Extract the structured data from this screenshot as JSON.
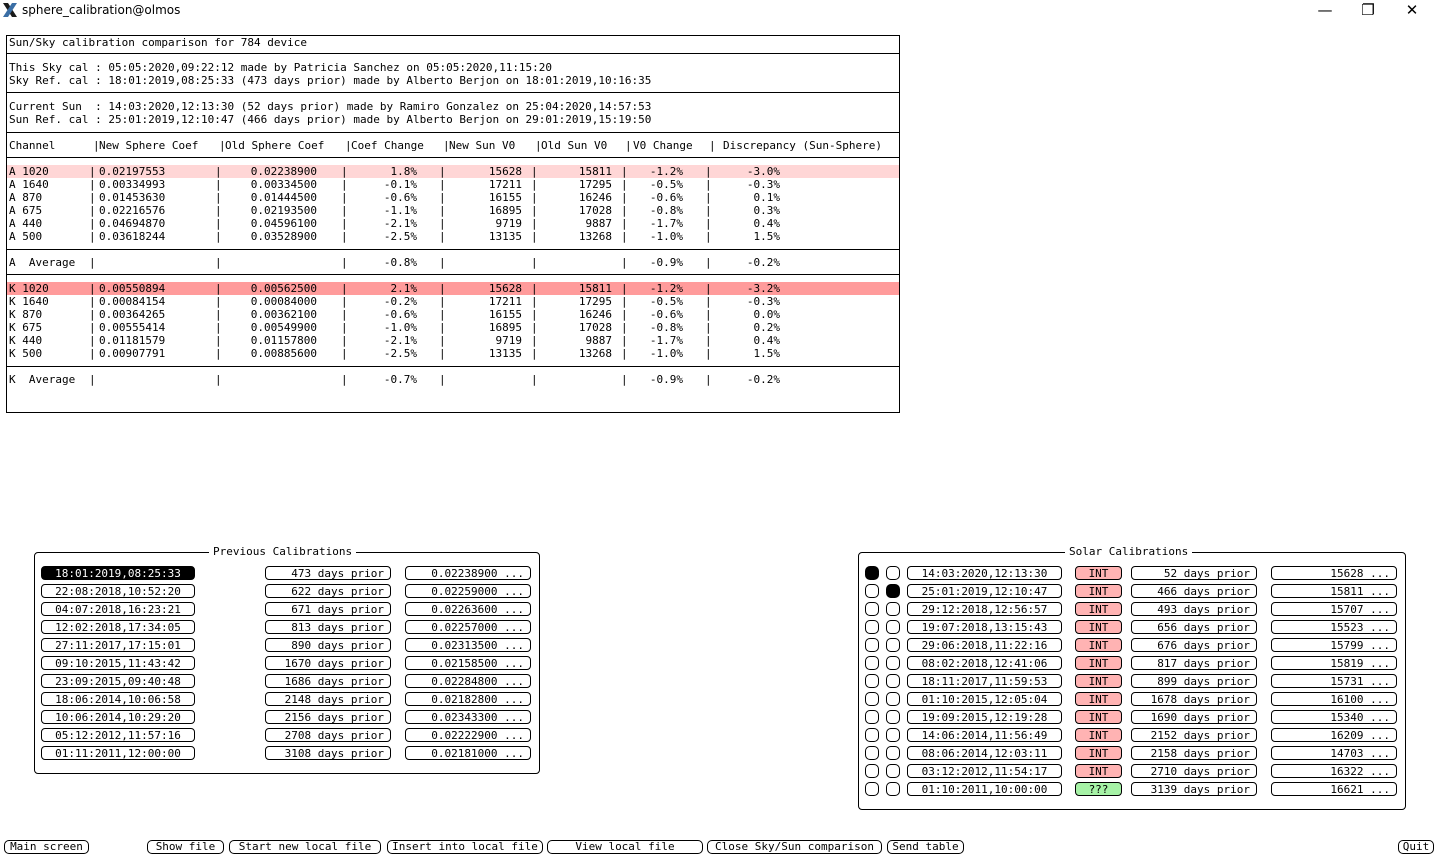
{
  "window": {
    "title": "sphere_calibration@olmos",
    "minimize": "—",
    "restore": "❐",
    "close": "✕"
  },
  "header": {
    "title": "Sun/Sky calibration comparison for 784 device",
    "sky_cal": "This Sky cal : 05:05:2020,09:22:12 made by Patricia Sanchez on 05:05:2020,11:15:20",
    "sky_ref": "Sky Ref. cal : 18:01:2019,08:25:33 (473 days prior) made by Alberto Berjon on 18:01:2019,10:16:35",
    "sun_cur": "Current Sun  : 14:03:2020,12:13:30 (52 days prior) made by Ramiro Gonzalez on 25:04:2020,14:57:53",
    "sun_ref": "Sun Ref. cal : 25:01:2019,12:10:47 (466 days prior) made by Alberto Berjon on 29:01:2019,15:19:50"
  },
  "columns": [
    "Channel",
    "New Sphere Coef",
    "Old Sphere Coef",
    "Coef Change",
    "New Sun V0",
    "Old Sun V0",
    "V0 Change",
    "Discrepancy (Sun-Sphere)"
  ],
  "groups": [
    {
      "rows": [
        {
          "ch": "A 1020",
          "nsc": "0.02197553",
          "osc": "0.02238900",
          "cc": "1.8%",
          "nsv": "15628",
          "osv": "15811",
          "vc": "-1.2%",
          "disc": "-3.0%",
          "hl": "a"
        },
        {
          "ch": "A 1640",
          "nsc": "0.00334993",
          "osc": "0.00334500",
          "cc": "-0.1%",
          "nsv": "17211",
          "osv": "17295",
          "vc": "-0.5%",
          "disc": "-0.3%",
          "hl": ""
        },
        {
          "ch": "A 870",
          "nsc": "0.01453630",
          "osc": "0.01444500",
          "cc": "-0.6%",
          "nsv": "16155",
          "osv": "16246",
          "vc": "-0.6%",
          "disc": "0.1%",
          "hl": ""
        },
        {
          "ch": "A 675",
          "nsc": "0.02216576",
          "osc": "0.02193500",
          "cc": "-1.1%",
          "nsv": "16895",
          "osv": "17028",
          "vc": "-0.8%",
          "disc": "0.3%",
          "hl": ""
        },
        {
          "ch": "A 440",
          "nsc": "0.04694870",
          "osc": "0.04596100",
          "cc": "-2.1%",
          "nsv": "9719",
          "osv": "9887",
          "vc": "-1.7%",
          "disc": "0.4%",
          "hl": ""
        },
        {
          "ch": "A 500",
          "nsc": "0.03618244",
          "osc": "0.03528900",
          "cc": "-2.5%",
          "nsv": "13135",
          "osv": "13268",
          "vc": "-1.0%",
          "disc": "1.5%",
          "hl": ""
        }
      ],
      "avg": {
        "label": "A  Average",
        "cc": "-0.8%",
        "vc": "-0.9%",
        "disc": "-0.2%"
      }
    },
    {
      "rows": [
        {
          "ch": "K 1020",
          "nsc": "0.00550894",
          "osc": "0.00562500",
          "cc": "2.1%",
          "nsv": "15628",
          "osv": "15811",
          "vc": "-1.2%",
          "disc": "-3.2%",
          "hl": "k"
        },
        {
          "ch": "K 1640",
          "nsc": "0.00084154",
          "osc": "0.00084000",
          "cc": "-0.2%",
          "nsv": "17211",
          "osv": "17295",
          "vc": "-0.5%",
          "disc": "-0.3%",
          "hl": ""
        },
        {
          "ch": "K 870",
          "nsc": "0.00364265",
          "osc": "0.00362100",
          "cc": "-0.6%",
          "nsv": "16155",
          "osv": "16246",
          "vc": "-0.6%",
          "disc": "0.0%",
          "hl": ""
        },
        {
          "ch": "K 675",
          "nsc": "0.00555414",
          "osc": "0.00549900",
          "cc": "-1.0%",
          "nsv": "16895",
          "osv": "17028",
          "vc": "-0.8%",
          "disc": "0.2%",
          "hl": ""
        },
        {
          "ch": "K 440",
          "nsc": "0.01181579",
          "osc": "0.01157800",
          "cc": "-2.1%",
          "nsv": "9719",
          "osv": "9887",
          "vc": "-1.7%",
          "disc": "0.4%",
          "hl": ""
        },
        {
          "ch": "K 500",
          "nsc": "0.00907791",
          "osc": "0.00885600",
          "cc": "-2.5%",
          "nsv": "13135",
          "osv": "13268",
          "vc": "-1.0%",
          "disc": "1.5%",
          "hl": ""
        }
      ],
      "avg": {
        "label": "K  Average",
        "cc": "-0.7%",
        "vc": "-0.9%",
        "disc": "-0.2%"
      }
    }
  ],
  "previous": {
    "title": "Previous Calibrations",
    "items": [
      {
        "date": "18:01:2019,08:25:33",
        "prior": "473 days prior",
        "coef": "0.02238900 ...",
        "selected": true
      },
      {
        "date": "22:08:2018,10:52:20",
        "prior": "622 days prior",
        "coef": "0.02259000 ...",
        "selected": false
      },
      {
        "date": "04:07:2018,16:23:21",
        "prior": "671 days prior",
        "coef": "0.02263600 ...",
        "selected": false
      },
      {
        "date": "12:02:2018,17:34:05",
        "prior": "813 days prior",
        "coef": "0.02257000 ...",
        "selected": false
      },
      {
        "date": "27:11:2017,17:15:01",
        "prior": "890 days prior",
        "coef": "0.02313500 ...",
        "selected": false
      },
      {
        "date": "09:10:2015,11:43:42",
        "prior": "1670 days prior",
        "coef": "0.02158500 ...",
        "selected": false
      },
      {
        "date": "23:09:2015,09:40:48",
        "prior": "1686 days prior",
        "coef": "0.02284800 ...",
        "selected": false
      },
      {
        "date": "18:06:2014,10:06:58",
        "prior": "2148 days prior",
        "coef": "0.02182800 ...",
        "selected": false
      },
      {
        "date": "10:06:2014,10:29:20",
        "prior": "2156 days prior",
        "coef": "0.02343300 ...",
        "selected": false
      },
      {
        "date": "05:12:2012,11:57:16",
        "prior": "2708 days prior",
        "coef": "0.02222900 ...",
        "selected": false
      },
      {
        "date": "01:11:2011,12:00:00",
        "prior": "3108 days prior",
        "coef": "0.02181000 ...",
        "selected": false
      }
    ]
  },
  "solar": {
    "title": "Solar Calibrations",
    "items": [
      {
        "r1": true,
        "r2": false,
        "date": "14:03:2020,12:13:30",
        "type": "INT",
        "prior": "52 days prior",
        "v0": "15628 ..."
      },
      {
        "r1": false,
        "r2": true,
        "date": "25:01:2019,12:10:47",
        "type": "INT",
        "prior": "466 days prior",
        "v0": "15811 ..."
      },
      {
        "r1": false,
        "r2": false,
        "date": "29:12:2018,12:56:57",
        "type": "INT",
        "prior": "493 days prior",
        "v0": "15707 ..."
      },
      {
        "r1": false,
        "r2": false,
        "date": "19:07:2018,13:15:43",
        "type": "INT",
        "prior": "656 days prior",
        "v0": "15523 ..."
      },
      {
        "r1": false,
        "r2": false,
        "date": "29:06:2018,11:22:16",
        "type": "INT",
        "prior": "676 days prior",
        "v0": "15799 ..."
      },
      {
        "r1": false,
        "r2": false,
        "date": "08:02:2018,12:41:06",
        "type": "INT",
        "prior": "817 days prior",
        "v0": "15819 ..."
      },
      {
        "r1": false,
        "r2": false,
        "date": "18:11:2017,11:59:53",
        "type": "INT",
        "prior": "899 days prior",
        "v0": "15731 ..."
      },
      {
        "r1": false,
        "r2": false,
        "date": "01:10:2015,12:05:04",
        "type": "INT",
        "prior": "1678 days prior",
        "v0": "16100 ..."
      },
      {
        "r1": false,
        "r2": false,
        "date": "19:09:2015,12:19:28",
        "type": "INT",
        "prior": "1690 days prior",
        "v0": "15340 ..."
      },
      {
        "r1": false,
        "r2": false,
        "date": "14:06:2014,11:56:49",
        "type": "INT",
        "prior": "2152 days prior",
        "v0": "16209 ..."
      },
      {
        "r1": false,
        "r2": false,
        "date": "08:06:2014,12:03:11",
        "type": "INT",
        "prior": "2158 days prior",
        "v0": "14703 ..."
      },
      {
        "r1": false,
        "r2": false,
        "date": "03:12:2012,11:54:17",
        "type": "INT",
        "prior": "2710 days prior",
        "v0": "16322 ..."
      },
      {
        "r1": false,
        "r2": false,
        "date": "01:10:2011,10:00:00",
        "type": "???",
        "prior": "3139 days prior",
        "v0": "16621 ..."
      }
    ]
  },
  "buttons": {
    "main_screen": "Main screen",
    "show_file": "Show file",
    "start_new": "Start new local file",
    "insert": "Insert into local file",
    "view": "View local file",
    "close_cmp": "Close Sky/Sun comparison",
    "send": "Send table",
    "quit": "Quit"
  },
  "colors": {
    "highlight_a": "#ffd6d6",
    "highlight_k": "#ff9b9b",
    "int_badge": "#ffb3b3",
    "unknown_badge": "#a6f2a6"
  }
}
